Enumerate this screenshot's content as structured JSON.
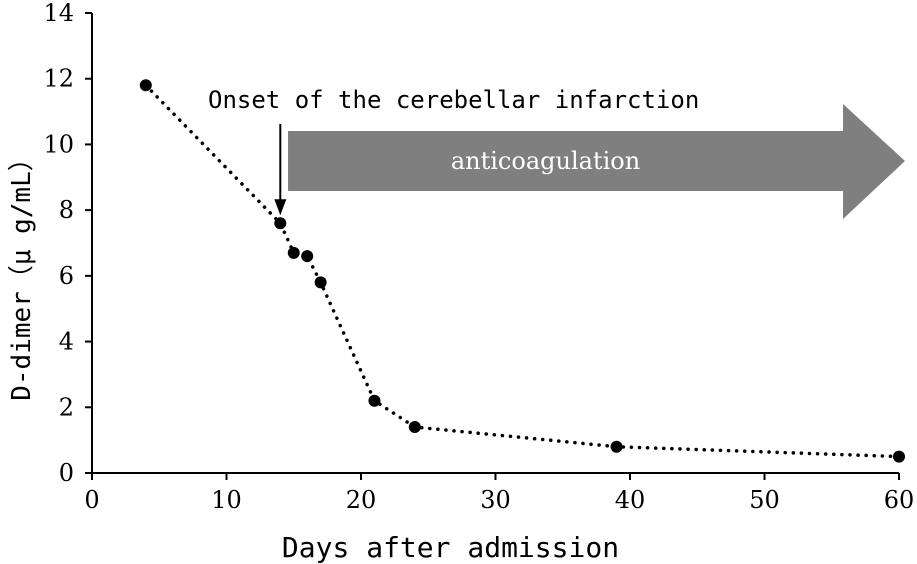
{
  "chart_data": {
    "type": "line",
    "title": "",
    "xlabel": "Days after admission",
    "ylabel": "D-dimer（μ g/mL）",
    "xlim": [
      0,
      60
    ],
    "ylim": [
      0,
      14
    ],
    "xticks": [
      0,
      10,
      20,
      30,
      40,
      50,
      60
    ],
    "yticks": [
      0,
      2,
      4,
      6,
      8,
      10,
      12,
      14
    ],
    "grid": false,
    "line_style": "dotted",
    "series": [
      {
        "x": [
          4,
          14,
          15,
          16,
          17,
          21,
          24,
          39,
          60
        ],
        "y": [
          11.8,
          7.6,
          6.7,
          6.6,
          5.8,
          2.2,
          1.4,
          0.8,
          0.5
        ]
      }
    ],
    "annotations": [
      {
        "text": "Onset of the cerebellar infarction",
        "type": "arrow-down",
        "x": 14,
        "y": 7.6
      },
      {
        "text": "anticoagulation",
        "type": "block-arrow-right",
        "x_start": 14.5,
        "x_end": 60,
        "color": "#7f7f7f"
      }
    ],
    "colors": {
      "marker": "#000000",
      "line": "#000000",
      "axis": "#000000",
      "block_arrow": "#7f7f7f",
      "block_arrow_text": "#ffffff"
    }
  }
}
